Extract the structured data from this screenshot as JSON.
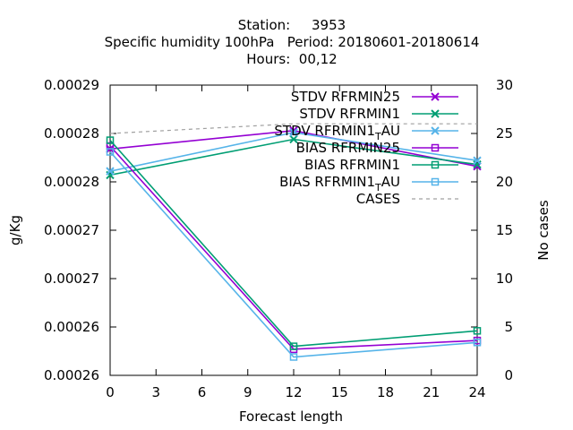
{
  "chart_data": {
    "type": "line",
    "title_lines": [
      "Station:     3953",
      "Specific humidity 100hPa   Period: 20180601-20180614",
      "Hours:  00,12"
    ],
    "xlabel": "Forecast length",
    "ylabel": "g/Kg",
    "y2label": "No cases",
    "x_ticks": [
      0,
      3,
      6,
      9,
      12,
      15,
      18,
      21,
      24
    ],
    "xlim": [
      0,
      24
    ],
    "ylim": [
      0.00026,
      0.00029
    ],
    "y_ticks": [
      0.00026,
      0.000265,
      0.00027,
      0.000275,
      0.00028,
      0.000285,
      0.00029
    ],
    "y_tick_labels": [
      "0.00026",
      "0.00026",
      "0.00027",
      "0.00027",
      "0.00028",
      "0.00028",
      "0.00029"
    ],
    "y2lim": [
      0,
      30
    ],
    "y2_ticks": [
      0,
      5,
      10,
      15,
      20,
      25,
      30
    ],
    "legend_position": "top-right",
    "grid": false,
    "series": [
      {
        "name": "STDV RFRMIN25",
        "color": "#9400d3",
        "marker": "x",
        "axis": "y1",
        "x": [
          0,
          12,
          24
        ],
        "y": [
          0.0002834,
          0.0002853,
          0.0002816
        ]
      },
      {
        "name": "STDV RFRMIN1",
        "color": "#009e73",
        "marker": "x",
        "axis": "y1",
        "x": [
          0,
          12,
          24
        ],
        "y": [
          0.0002807,
          0.0002844,
          0.0002818
        ]
      },
      {
        "name_parts": [
          "STDV RFRMIN1",
          "T",
          "AU"
        ],
        "color": "#56b4e9",
        "marker": "x",
        "axis": "y1",
        "x": [
          0,
          12,
          24
        ],
        "y": [
          0.0002811,
          0.0002851,
          0.0002822
        ]
      },
      {
        "name": "BIAS RFRMIN25",
        "color": "#9400d3",
        "marker": "square",
        "axis": "y1",
        "x": [
          0,
          12,
          24
        ],
        "y": [
          0.0002837,
          0.0002627,
          0.0002636
        ]
      },
      {
        "name": "BIAS RFRMIN1",
        "color": "#009e73",
        "marker": "square",
        "axis": "y1",
        "x": [
          0,
          12,
          24
        ],
        "y": [
          0.0002843,
          0.000263,
          0.0002646
        ]
      },
      {
        "name_parts": [
          "BIAS RFRMIN1",
          "T",
          "AU"
        ],
        "color": "#56b4e9",
        "marker": "square",
        "axis": "y1",
        "x": [
          0,
          12,
          24
        ],
        "y": [
          0.0002831,
          0.0002619,
          0.0002634
        ]
      },
      {
        "name": "CASES",
        "color": "#a0a0a0",
        "marker": "none",
        "dashed": true,
        "axis": "y2",
        "x": [
          0,
          12,
          24
        ],
        "y": [
          25,
          26,
          26
        ]
      }
    ]
  }
}
